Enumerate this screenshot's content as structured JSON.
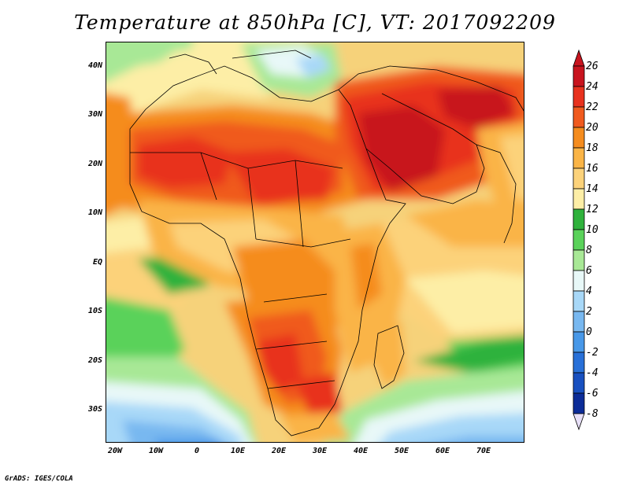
{
  "title": "Temperature at 850hPa [C], VT: 2017092209",
  "credit": "GrADS: IGES/COLA",
  "map": {
    "lat_labels": [
      "40N",
      "30N",
      "20N",
      "10N",
      "EQ",
      "10S",
      "20S",
      "30S"
    ],
    "lon_labels": [
      "20W",
      "10W",
      "0",
      "10E",
      "20E",
      "30E",
      "40E",
      "50E",
      "60E",
      "70E"
    ]
  },
  "colorbar": {
    "labels": [
      "26",
      "24",
      "22",
      "20",
      "18",
      "16",
      "14",
      "12",
      "10",
      "8",
      "6",
      "4",
      "2",
      "0",
      "-2",
      "-4",
      "-6",
      "-8"
    ],
    "colors": [
      "#c8141e",
      "#e8321e",
      "#f05a1e",
      "#f58c1e",
      "#fab446",
      "#fcd27a",
      "#fdeea6",
      "#2fb23c",
      "#5ad25a",
      "#a8e896",
      "#e8f8f8",
      "#a8d8f8",
      "#78b8f0",
      "#4898e8",
      "#2870d8",
      "#1850c0",
      "#0c2c98",
      "#08126a"
    ]
  },
  "chart_data": {
    "type": "heatmap",
    "title": "Temperature at 850hPa [C], VT: 2017092209",
    "x_range": [
      "22W",
      "79E"
    ],
    "y_range": [
      "36S",
      "45N"
    ],
    "colorbar_range": [
      -8,
      26
    ],
    "colorbar_step": 2,
    "units": "C"
  }
}
